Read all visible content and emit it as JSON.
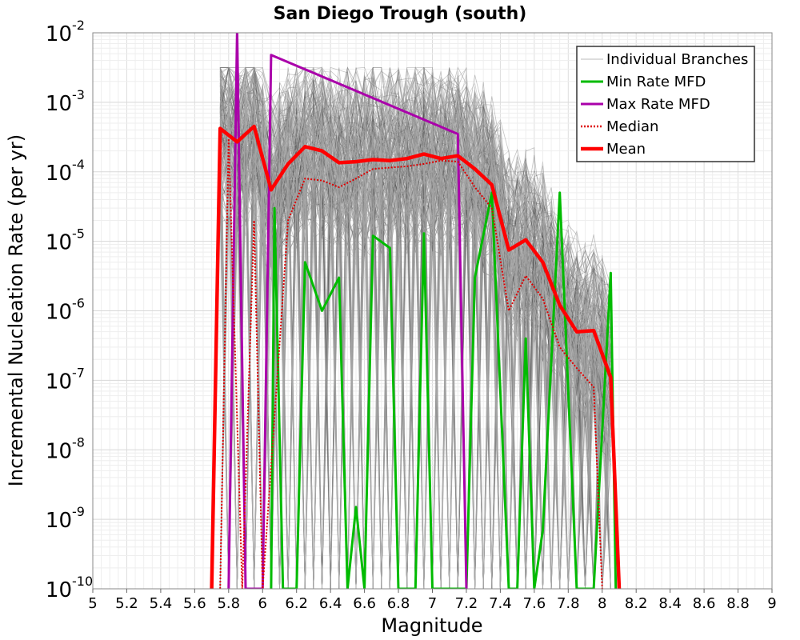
{
  "chart_data": {
    "type": "line",
    "title": "San Diego Trough (south)",
    "xlabel": "Magnitude",
    "ylabel": "Incremental Nucleation Rate (per yr)",
    "xlim": [
      5,
      9
    ],
    "ylim": [
      1e-10,
      0.01
    ],
    "yscale": "log",
    "grid": true,
    "legend_position": "top-right",
    "x_ticks": [
      "5",
      "5.2",
      "5.4",
      "5.6",
      "5.8",
      "6",
      "6.2",
      "6.4",
      "6.6",
      "6.8",
      "7",
      "7.2",
      "7.4",
      "7.6",
      "7.8",
      "8",
      "8.2",
      "8.4",
      "8.6",
      "8.8",
      "9"
    ],
    "y_ticks": [
      {
        "base": "10",
        "exp": "-10"
      },
      {
        "base": "10",
        "exp": "-9"
      },
      {
        "base": "10",
        "exp": "-8"
      },
      {
        "base": "10",
        "exp": "-7"
      },
      {
        "base": "10",
        "exp": "-6"
      },
      {
        "base": "10",
        "exp": "-5"
      },
      {
        "base": "10",
        "exp": "-4"
      },
      {
        "base": "10",
        "exp": "-3"
      },
      {
        "base": "10",
        "exp": "-2"
      }
    ],
    "legend": [
      {
        "name": "Individual Branches",
        "color": "#bbbbbb",
        "style": "solid"
      },
      {
        "name": "Min Rate MFD",
        "color": "#00bb00",
        "style": "solid"
      },
      {
        "name": "Max Rate MFD",
        "color": "#aa00aa",
        "style": "solid"
      },
      {
        "name": "Median",
        "color": "#dd0000",
        "style": "dotted"
      },
      {
        "name": "Mean",
        "color": "#ff0000",
        "style": "solid"
      }
    ],
    "series": [
      {
        "name": "Mean",
        "color": "#ff0000",
        "points": [
          [
            5.7,
            1e-10
          ],
          [
            5.75,
            0.00042
          ],
          [
            5.85,
            0.00027
          ],
          [
            5.95,
            0.00045
          ],
          [
            6.05,
            5.5e-05
          ],
          [
            6.15,
            0.00013
          ],
          [
            6.25,
            0.00023
          ],
          [
            6.35,
            0.0002
          ],
          [
            6.45,
            0.000135
          ],
          [
            6.55,
            0.00014
          ],
          [
            6.65,
            0.00015
          ],
          [
            6.75,
            0.000145
          ],
          [
            6.85,
            0.000155
          ],
          [
            6.95,
            0.00018
          ],
          [
            7.05,
            0.000155
          ],
          [
            7.15,
            0.00017
          ],
          [
            7.25,
            0.00011
          ],
          [
            7.35,
            6.5e-05
          ],
          [
            7.45,
            7.5e-06
          ],
          [
            7.55,
            1.05e-05
          ],
          [
            7.65,
            5e-06
          ],
          [
            7.75,
            1.2e-06
          ],
          [
            7.85,
            5e-07
          ],
          [
            7.95,
            5.2e-07
          ],
          [
            8.05,
            1.1e-07
          ],
          [
            8.1,
            1e-10
          ]
        ]
      },
      {
        "name": "Median",
        "color": "#dd0000",
        "points": [
          [
            5.75,
            1e-10
          ],
          [
            5.8,
            0.0003
          ],
          [
            5.88,
            1e-10
          ],
          [
            5.95,
            2e-05
          ],
          [
            6.0,
            1e-10
          ],
          [
            6.15,
            2e-05
          ],
          [
            6.25,
            8e-05
          ],
          [
            6.35,
            7.5e-05
          ],
          [
            6.45,
            6e-05
          ],
          [
            6.55,
            8e-05
          ],
          [
            6.65,
            0.00011
          ],
          [
            6.75,
            0.000115
          ],
          [
            6.85,
            0.00012
          ],
          [
            6.95,
            0.00013
          ],
          [
            7.05,
            0.000145
          ],
          [
            7.15,
            0.00014
          ],
          [
            7.25,
            6e-05
          ],
          [
            7.35,
            3e-05
          ],
          [
            7.45,
            1e-06
          ],
          [
            7.55,
            3.2e-06
          ],
          [
            7.65,
            1.5e-06
          ],
          [
            7.75,
            3e-07
          ],
          [
            7.85,
            1.5e-07
          ],
          [
            7.95,
            8e-08
          ],
          [
            8.0,
            1e-10
          ]
        ]
      },
      {
        "name": "Min Rate MFD",
        "color": "#00bb00",
        "points": [
          [
            6.05,
            1e-10
          ],
          [
            6.07,
            3e-05
          ],
          [
            6.12,
            1e-10
          ],
          [
            6.2,
            1e-10
          ],
          [
            6.25,
            5e-06
          ],
          [
            6.35,
            1e-06
          ],
          [
            6.45,
            3e-06
          ],
          [
            6.5,
            1e-10
          ],
          [
            6.55,
            1.5e-09
          ],
          [
            6.6,
            1e-10
          ],
          [
            6.65,
            1.2e-05
          ],
          [
            6.75,
            8e-06
          ],
          [
            6.8,
            1e-10
          ],
          [
            6.9,
            1e-10
          ],
          [
            6.95,
            1.3e-05
          ],
          [
            7.0,
            1e-10
          ],
          [
            7.2,
            1e-10
          ],
          [
            7.25,
            3e-06
          ],
          [
            7.35,
            5e-05
          ],
          [
            7.45,
            1e-10
          ],
          [
            7.5,
            1e-10
          ],
          [
            7.55,
            4e-07
          ],
          [
            7.6,
            1e-10
          ],
          [
            7.65,
            7e-10
          ],
          [
            7.75,
            5e-05
          ],
          [
            7.85,
            1e-10
          ],
          [
            7.95,
            1e-10
          ],
          [
            8.05,
            3.5e-06
          ],
          [
            8.08,
            1e-10
          ]
        ]
      },
      {
        "name": "Max Rate MFD",
        "color": "#aa00aa",
        "points": [
          [
            5.8,
            1e-10
          ],
          [
            5.85,
            0.011
          ],
          [
            5.9,
            1e-10
          ],
          [
            6.0,
            1e-10
          ],
          [
            6.05,
            0.0048
          ],
          [
            7.15,
            0.00035
          ],
          [
            7.2,
            1e-10
          ]
        ]
      }
    ]
  }
}
